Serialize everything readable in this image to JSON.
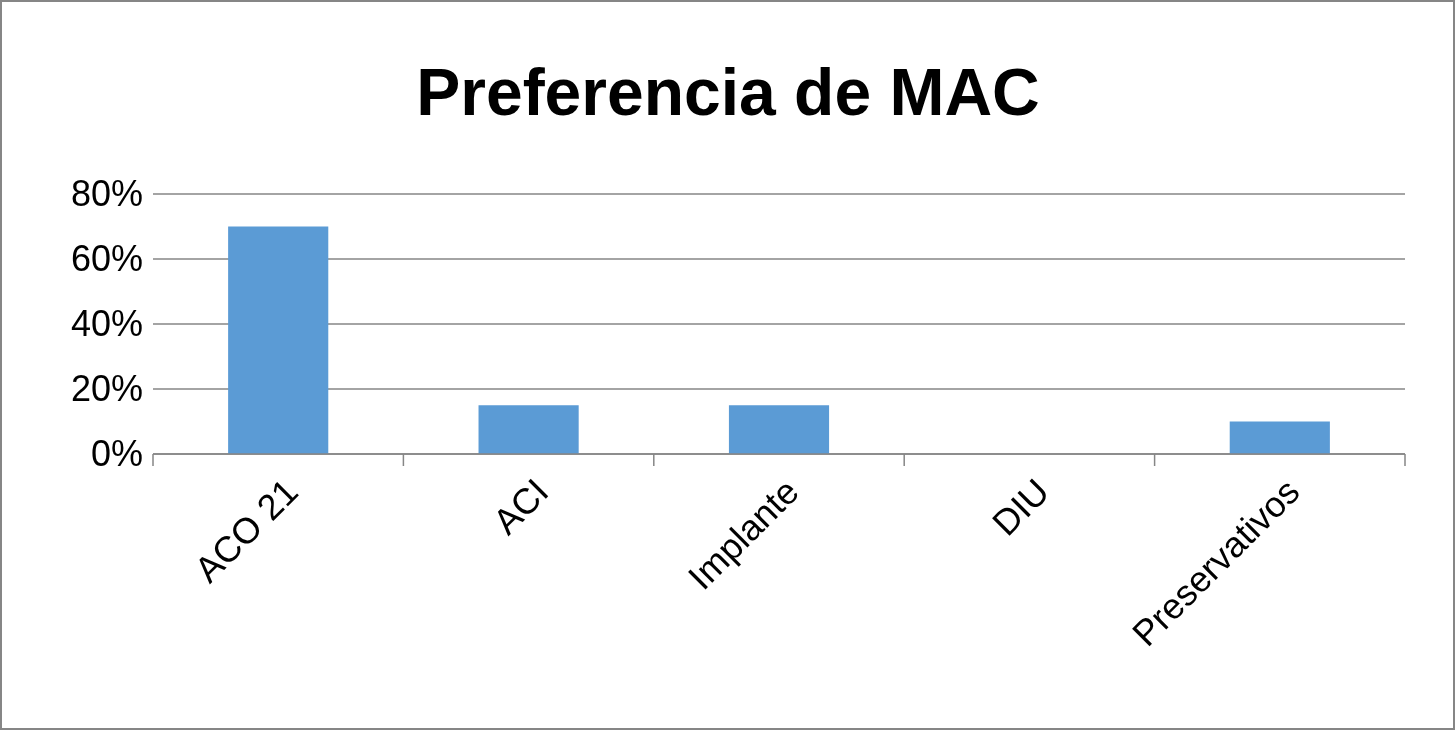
{
  "chart_data": {
    "type": "bar",
    "title": "Preferencia de MAC",
    "categories": [
      "ACO 21",
      "ACI",
      "Implante",
      "DIU",
      "Preservativos"
    ],
    "values": [
      70,
      15,
      15,
      0,
      10
    ],
    "color": "#5b9bd5",
    "ylim": [
      0,
      80
    ],
    "yticks": [
      {
        "value": 0,
        "label": "0%"
      },
      {
        "value": 20,
        "label": "20%"
      },
      {
        "value": 40,
        "label": "40%"
      },
      {
        "value": 60,
        "label": "60%"
      },
      {
        "value": 80,
        "label": "80%"
      }
    ],
    "grid": "y"
  }
}
